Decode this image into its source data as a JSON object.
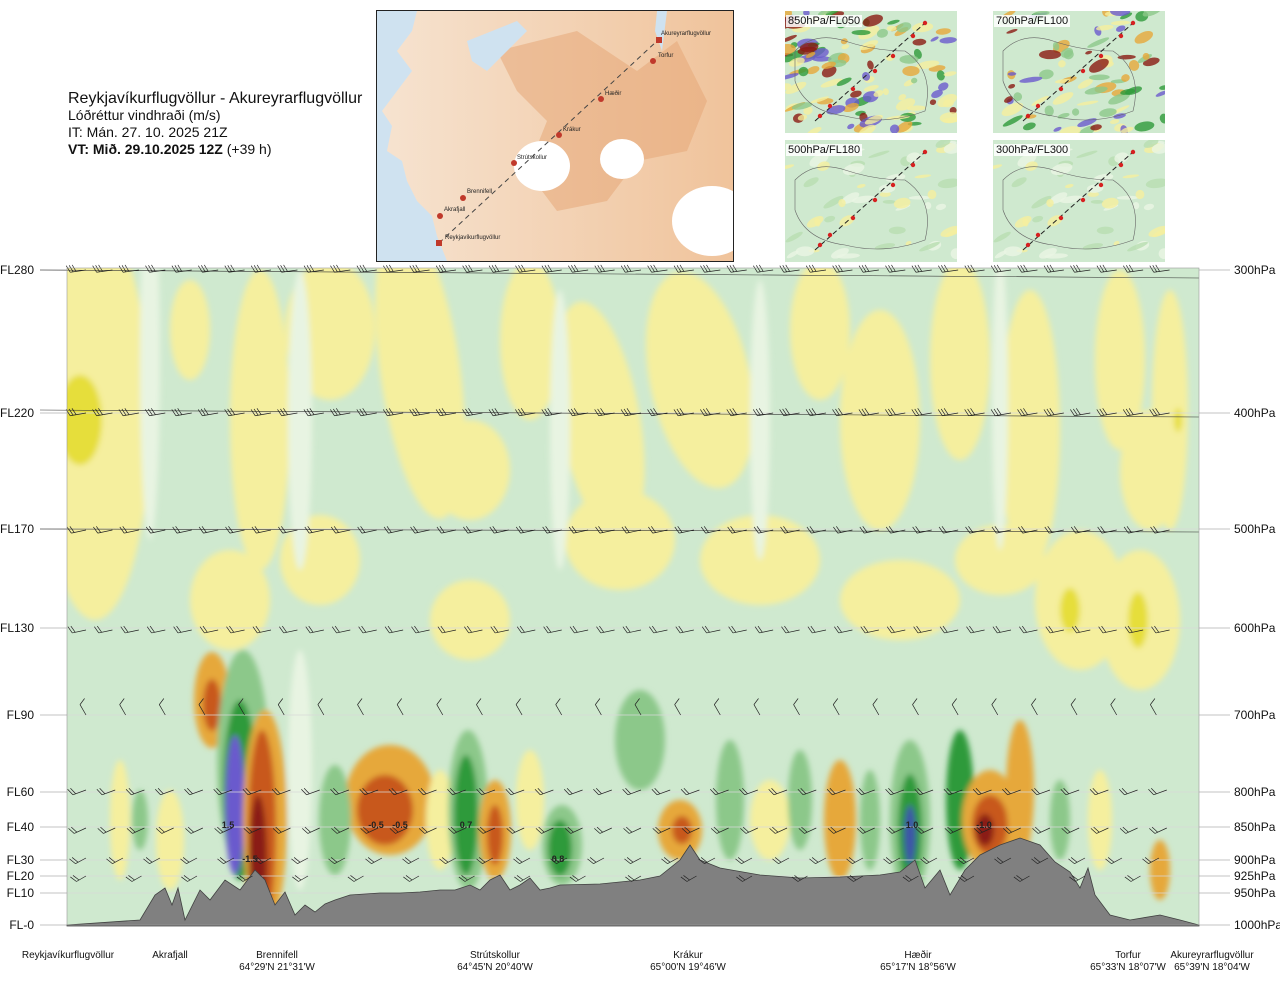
{
  "header": {
    "route": "Reykjavíkurflugvöllur - Akureyrarflugvöllur",
    "variable": "Lóðréttur vindhraði (m/s)",
    "initial_time": "IT: Mán. 27. 10. 2025 21Z",
    "valid_label": "VT: Mið. 29.10.2025 12Z",
    "valid_offset": "(+39 h)"
  },
  "route_map": {
    "points": [
      {
        "name": "Akureyrarflugvöllur"
      },
      {
        "name": "Torfur"
      },
      {
        "name": "Hæðir"
      },
      {
        "name": "Krákur"
      },
      {
        "name": "Strútskollur"
      },
      {
        "name": "Brennifell"
      },
      {
        "name": "Akrafjall"
      },
      {
        "name": "Reykjavíkurflugvöllur"
      }
    ]
  },
  "level_maps": [
    {
      "label": "850hPa/FL050"
    },
    {
      "label": "700hPa/FL100"
    },
    {
      "label": "500hPa/FL180"
    },
    {
      "label": "300hPa/FL300"
    }
  ],
  "chart_data": {
    "type": "heatmap",
    "title": "Lóðréttur vindhraði (m/s)",
    "left_axis_flight_levels": [
      "FL280",
      "FL220",
      "FL170",
      "FL130",
      "FL90",
      "FL60",
      "FL40",
      "FL30",
      "FL20",
      "FL10",
      "FL-0"
    ],
    "right_axis_pressure_levels": [
      "300hPa",
      "400hPa",
      "500hPa",
      "600hPa",
      "700hPa",
      "800hPa",
      "850hPa",
      "900hPa",
      "925hPa",
      "950hPa",
      "1000hPa"
    ],
    "pressure_hpa": [
      300,
      400,
      500,
      600,
      700,
      800,
      850,
      900,
      925,
      950,
      1000
    ],
    "grid": true,
    "waypoints": [
      {
        "name": "Reykjavíkurflugvöllur",
        "coord": ""
      },
      {
        "name": "Akrafjall",
        "coord": ""
      },
      {
        "name": "Brennifell",
        "coord": "64°29'N 21°31'W"
      },
      {
        "name": "Strútskollur",
        "coord": "64°45'N 20°40'W"
      },
      {
        "name": "Krákur",
        "coord": "65°00'N 19°46'W"
      },
      {
        "name": "Hæðir",
        "coord": "65°17'N 18°56'W"
      },
      {
        "name": "Torfur",
        "coord": "65°33'N 18°07'W"
      },
      {
        "name": "Akureyrarflugvöllur",
        "coord": "65°39'N 18°04'W"
      }
    ],
    "extrema_labels": [
      "-1.5",
      "1.5",
      "-0.5",
      "-0.5",
      "0.7",
      "0.8",
      "1.0",
      "-1.0"
    ],
    "colors": {
      "strong_down": "#8a1a12",
      "down_2": "#c8581f",
      "down_3": "#e6a83a",
      "down_weak": "#f5ef9e",
      "weak_up": "#c9e6c4",
      "up_2": "#8cc88a",
      "up_3": "#2e9a3a",
      "strong_up": "#6a5acd",
      "terrain": "#808080"
    }
  }
}
